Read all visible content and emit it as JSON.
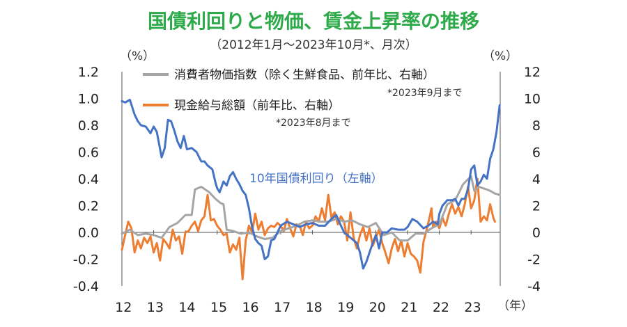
{
  "chart_data": {
    "type": "line",
    "title": "国債利回りと物価、賃金上昇率の推移",
    "subtitle": "（2012年1月～2023年10月*、月次）",
    "left_unit": "（%）",
    "right_unit": "（%）",
    "x_unit": "（年）",
    "x_tick_labels": [
      "12",
      "13",
      "14",
      "15",
      "16",
      "17",
      "18",
      "19",
      "20",
      "21",
      "22",
      "23"
    ],
    "left_axis": {
      "ylim": [
        -0.4,
        1.2
      ],
      "ticks": [
        "-0.4",
        "-0.2",
        "0.0",
        "0.2",
        "0.4",
        "0.6",
        "0.8",
        "1.0",
        "1.2"
      ]
    },
    "right_axis": {
      "ylim": [
        -4,
        12
      ],
      "ticks": [
        "-4",
        "-2",
        "0",
        "2",
        "4",
        "6",
        "8",
        "10",
        "12"
      ]
    },
    "grid": false,
    "legend": [
      {
        "label": "消費者物価指数（除く生鮮食品、前年比、右軸）",
        "note": "*2023年9月まで"
      },
      {
        "label": "現金給与総額（前年比、右軸）",
        "note": "*2023年8月まで"
      }
    ],
    "annotation": "10年国債利回り（左軸）",
    "colors": {
      "jgb": "#4472c4",
      "cpi": "#a5a5a5",
      "wage": "#ed7d31",
      "title": "#2eaa4a"
    },
    "series": [
      {
        "name": "10年国債利回り（左軸）",
        "axis": "left",
        "points": [
          [
            2012.0,
            0.98
          ],
          [
            2012.1,
            0.97
          ],
          [
            2012.25,
            0.99
          ],
          [
            2012.4,
            0.88
          ],
          [
            2012.5,
            0.83
          ],
          [
            2012.6,
            0.8
          ],
          [
            2012.75,
            0.79
          ],
          [
            2012.9,
            0.74
          ],
          [
            2013.0,
            0.79
          ],
          [
            2013.1,
            0.75
          ],
          [
            2013.25,
            0.56
          ],
          [
            2013.35,
            0.63
          ],
          [
            2013.45,
            0.84
          ],
          [
            2013.55,
            0.83
          ],
          [
            2013.65,
            0.76
          ],
          [
            2013.75,
            0.68
          ],
          [
            2013.85,
            0.63
          ],
          [
            2013.95,
            0.72
          ],
          [
            2014.05,
            0.62
          ],
          [
            2014.2,
            0.63
          ],
          [
            2014.35,
            0.6
          ],
          [
            2014.5,
            0.53
          ],
          [
            2014.6,
            0.53
          ],
          [
            2014.7,
            0.5
          ],
          [
            2014.85,
            0.47
          ],
          [
            2014.95,
            0.37
          ],
          [
            2015.0,
            0.33
          ],
          [
            2015.08,
            0.3
          ],
          [
            2015.2,
            0.38
          ],
          [
            2015.3,
            0.35
          ],
          [
            2015.4,
            0.42
          ],
          [
            2015.5,
            0.45
          ],
          [
            2015.6,
            0.4
          ],
          [
            2015.7,
            0.36
          ],
          [
            2015.8,
            0.31
          ],
          [
            2015.9,
            0.28
          ],
          [
            2016.0,
            0.18
          ],
          [
            2016.1,
            0.04
          ],
          [
            2016.2,
            -0.05
          ],
          [
            2016.3,
            -0.08
          ],
          [
            2016.4,
            -0.1
          ],
          [
            2016.5,
            -0.2
          ],
          [
            2016.6,
            -0.18
          ],
          [
            2016.7,
            -0.06
          ],
          [
            2016.8,
            -0.05
          ],
          [
            2016.9,
            0.0
          ],
          [
            2017.0,
            0.05
          ],
          [
            2017.2,
            0.08
          ],
          [
            2017.4,
            0.06
          ],
          [
            2017.6,
            0.04
          ],
          [
            2017.8,
            0.06
          ],
          [
            2018.0,
            0.07
          ],
          [
            2018.2,
            0.05
          ],
          [
            2018.4,
            0.05
          ],
          [
            2018.6,
            0.1
          ],
          [
            2018.75,
            0.13
          ],
          [
            2018.9,
            0.05
          ],
          [
            2019.0,
            0.0
          ],
          [
            2019.1,
            -0.02
          ],
          [
            2019.25,
            -0.05
          ],
          [
            2019.4,
            -0.08
          ],
          [
            2019.5,
            -0.15
          ],
          [
            2019.6,
            -0.27
          ],
          [
            2019.7,
            -0.22
          ],
          [
            2019.8,
            -0.15
          ],
          [
            2019.9,
            -0.08
          ],
          [
            2020.0,
            -0.02
          ],
          [
            2020.1,
            -0.12
          ],
          [
            2020.2,
            0.0
          ],
          [
            2020.35,
            0.0
          ],
          [
            2020.5,
            0.03
          ],
          [
            2020.7,
            0.02
          ],
          [
            2020.9,
            0.02
          ],
          [
            2021.0,
            0.04
          ],
          [
            2021.15,
            0.1
          ],
          [
            2021.3,
            0.08
          ],
          [
            2021.5,
            0.03
          ],
          [
            2021.65,
            0.05
          ],
          [
            2021.8,
            0.08
          ],
          [
            2021.95,
            0.06
          ],
          [
            2022.0,
            0.14
          ],
          [
            2022.1,
            0.2
          ],
          [
            2022.25,
            0.24
          ],
          [
            2022.4,
            0.24
          ],
          [
            2022.5,
            0.25
          ],
          [
            2022.6,
            0.2
          ],
          [
            2022.7,
            0.25
          ],
          [
            2022.8,
            0.25
          ],
          [
            2022.9,
            0.32
          ],
          [
            2023.0,
            0.47
          ],
          [
            2023.1,
            0.5
          ],
          [
            2023.2,
            0.35
          ],
          [
            2023.3,
            0.38
          ],
          [
            2023.4,
            0.43
          ],
          [
            2023.5,
            0.4
          ],
          [
            2023.6,
            0.55
          ],
          [
            2023.7,
            0.62
          ],
          [
            2023.8,
            0.75
          ],
          [
            2023.9,
            0.95
          ]
        ]
      },
      {
        "name": "消費者物価指数（除く生鮮食品、前年比、右軸）",
        "axis": "right",
        "points": [
          [
            2012.0,
            -0.1
          ],
          [
            2012.25,
            0.2
          ],
          [
            2012.5,
            -0.2
          ],
          [
            2012.75,
            -0.1
          ],
          [
            2013.0,
            -0.2
          ],
          [
            2013.25,
            -0.4
          ],
          [
            2013.5,
            0.4
          ],
          [
            2013.75,
            0.7
          ],
          [
            2014.0,
            1.3
          ],
          [
            2014.2,
            1.3
          ],
          [
            2014.3,
            3.2
          ],
          [
            2014.5,
            3.4
          ],
          [
            2014.75,
            3.0
          ],
          [
            2014.95,
            2.5
          ],
          [
            2015.1,
            2.2
          ],
          [
            2015.2,
            2.1
          ],
          [
            2015.3,
            0.2
          ],
          [
            2015.5,
            0.1
          ],
          [
            2015.75,
            -0.1
          ],
          [
            2016.0,
            0.0
          ],
          [
            2016.25,
            -0.3
          ],
          [
            2016.5,
            -0.5
          ],
          [
            2016.75,
            -0.4
          ],
          [
            2017.0,
            0.1
          ],
          [
            2017.25,
            0.3
          ],
          [
            2017.5,
            0.5
          ],
          [
            2017.75,
            0.8
          ],
          [
            2018.0,
            0.9
          ],
          [
            2018.25,
            0.8
          ],
          [
            2018.5,
            0.8
          ],
          [
            2018.75,
            1.0
          ],
          [
            2019.0,
            0.8
          ],
          [
            2019.25,
            0.9
          ],
          [
            2019.5,
            0.6
          ],
          [
            2019.75,
            0.4
          ],
          [
            2020.0,
            0.7
          ],
          [
            2020.25,
            -0.2
          ],
          [
            2020.5,
            0.0
          ],
          [
            2020.75,
            -0.6
          ],
          [
            2021.0,
            -0.6
          ],
          [
            2021.25,
            -0.1
          ],
          [
            2021.5,
            -0.1
          ],
          [
            2021.75,
            0.3
          ],
          [
            2022.0,
            0.6
          ],
          [
            2022.25,
            2.1
          ],
          [
            2022.5,
            2.4
          ],
          [
            2022.75,
            3.6
          ],
          [
            2023.0,
            4.2
          ],
          [
            2023.1,
            3.1
          ],
          [
            2023.25,
            3.4
          ],
          [
            2023.5,
            3.2
          ],
          [
            2023.6,
            3.1
          ],
          [
            2023.75,
            2.9
          ],
          [
            2023.9,
            2.8
          ]
        ]
      },
      {
        "name": "現金給与総額（前年比、右軸）",
        "axis": "right",
        "points": [
          [
            2012.0,
            -1.3
          ],
          [
            2012.1,
            -0.2
          ],
          [
            2012.2,
            0.8
          ],
          [
            2012.3,
            0.3
          ],
          [
            2012.4,
            -1.5
          ],
          [
            2012.5,
            -0.6
          ],
          [
            2012.6,
            -1.2
          ],
          [
            2012.7,
            -0.4
          ],
          [
            2012.8,
            -0.8
          ],
          [
            2012.9,
            -0.3
          ],
          [
            2013.0,
            -1.5
          ],
          [
            2013.1,
            -0.8
          ],
          [
            2013.2,
            -2.1
          ],
          [
            2013.3,
            -0.5
          ],
          [
            2013.4,
            -0.8
          ],
          [
            2013.5,
            -1.2
          ],
          [
            2013.6,
            0.2
          ],
          [
            2013.7,
            -0.6
          ],
          [
            2013.8,
            -0.3
          ],
          [
            2013.9,
            -1.6
          ],
          [
            2014.0,
            0.0
          ],
          [
            2014.1,
            0.1
          ],
          [
            2014.2,
            0.5
          ],
          [
            2014.3,
            0.8
          ],
          [
            2014.4,
            0.1
          ],
          [
            2014.5,
            0.9
          ],
          [
            2014.6,
            1.2
          ],
          [
            2014.7,
            2.8
          ],
          [
            2014.8,
            0.9
          ],
          [
            2014.9,
            1.0
          ],
          [
            2015.0,
            0.5
          ],
          [
            2015.1,
            0.2
          ],
          [
            2015.2,
            -0.2
          ],
          [
            2015.3,
            -0.1
          ],
          [
            2015.4,
            -1.5
          ],
          [
            2015.5,
            -0.9
          ],
          [
            2015.6,
            -1.3
          ],
          [
            2015.7,
            -0.4
          ],
          [
            2015.8,
            -3.5
          ],
          [
            2015.9,
            -0.6
          ],
          [
            2016.0,
            0.5
          ],
          [
            2016.1,
            0.0
          ],
          [
            2016.2,
            1.4
          ],
          [
            2016.3,
            0.2
          ],
          [
            2016.4,
            0.8
          ],
          [
            2016.5,
            -0.2
          ],
          [
            2016.6,
            0.3
          ],
          [
            2016.7,
            0.5
          ],
          [
            2016.8,
            0.4
          ],
          [
            2016.9,
            0.7
          ],
          [
            2017.0,
            0.5
          ],
          [
            2017.1,
            0.1
          ],
          [
            2017.2,
            1.0
          ],
          [
            2017.3,
            0.3
          ],
          [
            2017.4,
            -0.3
          ],
          [
            2017.5,
            0.6
          ],
          [
            2017.6,
            0.5
          ],
          [
            2017.7,
            -0.2
          ],
          [
            2017.8,
            0.8
          ],
          [
            2017.9,
            0.3
          ],
          [
            2018.0,
            0.5
          ],
          [
            2018.1,
            1.2
          ],
          [
            2018.2,
            0.8
          ],
          [
            2018.3,
            1.8
          ],
          [
            2018.4,
            0.9
          ],
          [
            2018.5,
            2.8
          ],
          [
            2018.6,
            1.1
          ],
          [
            2018.7,
            1.5
          ],
          [
            2018.8,
            0.6
          ],
          [
            2018.9,
            1.2
          ],
          [
            2019.0,
            0.8
          ],
          [
            2019.1,
            -0.6
          ],
          [
            2019.2,
            1.5
          ],
          [
            2019.3,
            -0.4
          ],
          [
            2019.4,
            -1.2
          ],
          [
            2019.5,
            -0.2
          ],
          [
            2019.6,
            0.4
          ],
          [
            2019.7,
            -0.6
          ],
          [
            2019.8,
            0.3
          ],
          [
            2019.9,
            -1.0
          ],
          [
            2020.0,
            -0.4
          ],
          [
            2020.1,
            0.2
          ],
          [
            2020.2,
            -0.8
          ],
          [
            2020.3,
            -1.5
          ],
          [
            2020.4,
            -2.3
          ],
          [
            2020.5,
            -1.2
          ],
          [
            2020.6,
            -0.5
          ],
          [
            2020.7,
            -1.4
          ],
          [
            2020.8,
            -0.6
          ],
          [
            2020.9,
            -1.8
          ],
          [
            2021.0,
            -0.8
          ],
          [
            2021.1,
            -1.6
          ],
          [
            2021.2,
            -1.8
          ],
          [
            2021.3,
            -2.1
          ],
          [
            2021.4,
            -3.0
          ],
          [
            2021.5,
            -0.7
          ],
          [
            2021.6,
            0.2
          ],
          [
            2021.7,
            1.2
          ],
          [
            2021.75,
            1.8
          ],
          [
            2021.8,
            0.4
          ],
          [
            2021.9,
            0.8
          ],
          [
            2022.0,
            0.3
          ],
          [
            2022.1,
            1.1
          ],
          [
            2022.2,
            0.5
          ],
          [
            2022.3,
            1.4
          ],
          [
            2022.4,
            2.1
          ],
          [
            2022.5,
            1.4
          ],
          [
            2022.6,
            1.9
          ],
          [
            2022.7,
            1.2
          ],
          [
            2022.8,
            2.1
          ],
          [
            2022.9,
            3.4
          ],
          [
            2023.0,
            1.8
          ],
          [
            2023.1,
            2.4
          ],
          [
            2023.2,
            4.0
          ],
          [
            2023.3,
            0.8
          ],
          [
            2023.4,
            1.2
          ],
          [
            2023.5,
            0.9
          ],
          [
            2023.6,
            2.1
          ],
          [
            2023.7,
            1.1
          ],
          [
            2023.75,
            0.8
          ]
        ]
      }
    ]
  }
}
